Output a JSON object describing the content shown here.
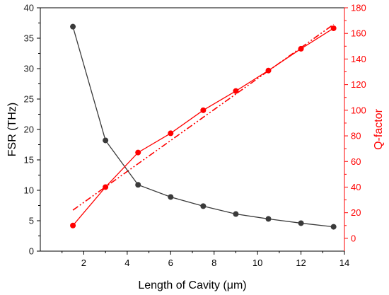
{
  "chart_data": {
    "type": "line",
    "x_axis": {
      "label": "Length of Cavity (μm)",
      "range": [
        0,
        14
      ],
      "ticks": [
        2,
        4,
        6,
        8,
        10,
        12,
        14
      ]
    },
    "y_axis_left": {
      "label": "FSR (THz)",
      "range": [
        0,
        40
      ],
      "ticks": [
        0,
        5,
        10,
        15,
        20,
        25,
        30,
        35,
        40
      ],
      "color": "#222222"
    },
    "y_axis_right": {
      "label": "Q-factor",
      "range": [
        -10,
        180
      ],
      "ticks": [
        0,
        20,
        40,
        60,
        80,
        100,
        120,
        140,
        160,
        180
      ],
      "color": "#ff0000"
    },
    "series": [
      {
        "axis": "left",
        "color": "#3a3a3a",
        "x": [
          1.5,
          3,
          4.5,
          6,
          7.5,
          9,
          10.5,
          12,
          13.5
        ],
        "y": [
          36.9,
          18.2,
          10.9,
          8.9,
          7.4,
          6.1,
          5.3,
          4.6,
          4.0
        ]
      },
      {
        "axis": "right",
        "color": "#ff0000",
        "x": [
          1.5,
          3,
          4.5,
          6,
          7.5,
          9,
          10.5,
          12,
          13.5
        ],
        "y": [
          10,
          40,
          67,
          82,
          100,
          115,
          131,
          148,
          164
        ]
      }
    ],
    "fit_line": {
      "axis": "right",
      "color": "#ff0000",
      "style": "dash-dot-dot",
      "x": [
        1.5,
        13.5
      ],
      "y": [
        22,
        167
      ]
    },
    "grid": false,
    "legend": "none"
  }
}
